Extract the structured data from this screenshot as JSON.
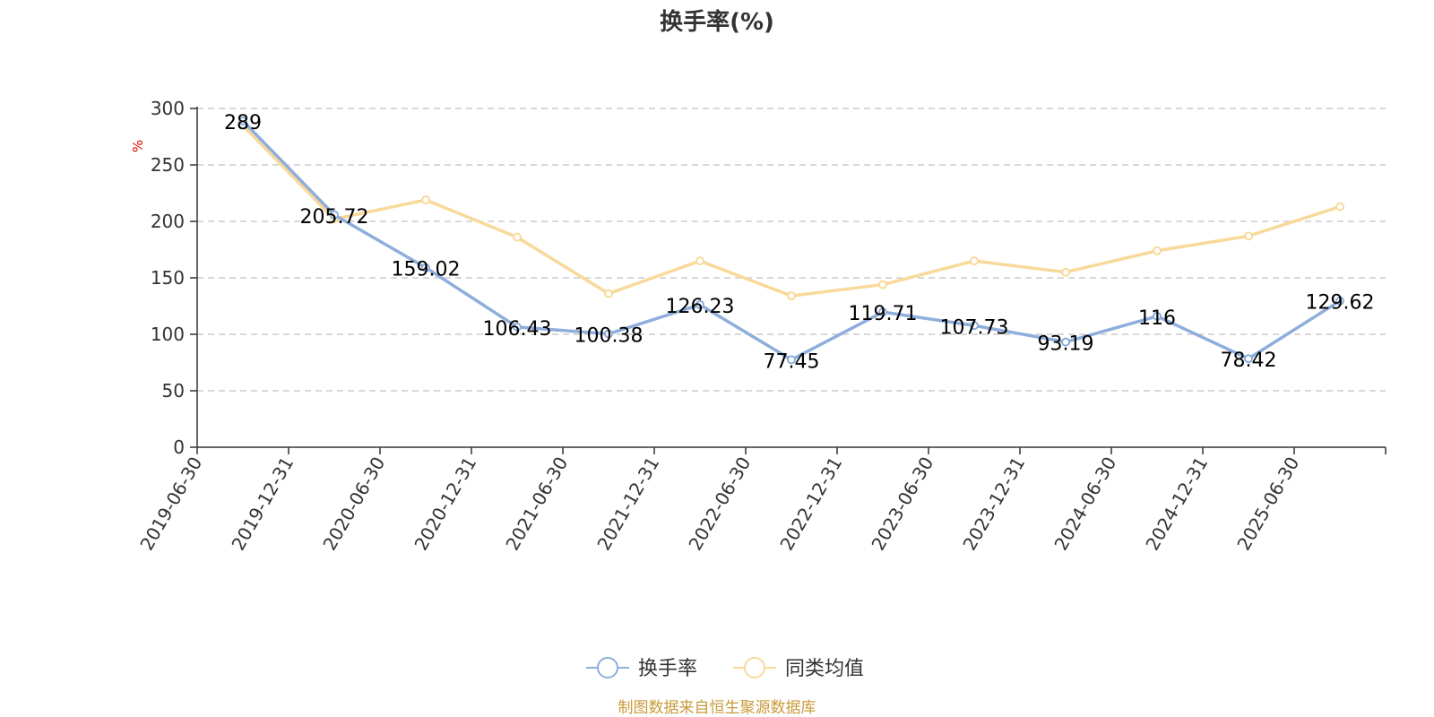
{
  "chart_data": {
    "type": "line",
    "title": "换手率(%)",
    "ylabel": "%",
    "xlabel": "",
    "categories": [
      "2019-06-30",
      "2019-12-31",
      "2020-06-30",
      "2020-12-31",
      "2021-06-30",
      "2021-12-31",
      "2022-06-30",
      "2022-12-31",
      "2023-06-30",
      "2023-12-31",
      "2024-06-30",
      "2024-12-31",
      "2025-06-30"
    ],
    "yticks": [
      0,
      50,
      100,
      150,
      200,
      250,
      300
    ],
    "ylim": [
      0,
      300
    ],
    "grid": true,
    "legend_position": "bottom-center",
    "series": [
      {
        "name": "换手率",
        "color": "#8eaedb",
        "values": [
          289,
          205.72,
          159.02,
          106.43,
          100.38,
          126.23,
          77.45,
          119.71,
          107.73,
          93.19,
          116,
          78.42,
          129.62
        ],
        "labels": [
          "289",
          "205.72",
          "159.02",
          "106.43",
          "100.38",
          "126.23",
          "77.45",
          "119.71",
          "107.73",
          "93.19",
          "116",
          "78.42",
          "129.62"
        ]
      },
      {
        "name": "同类均值",
        "color": "#f9d99a",
        "values": [
          285,
          202,
          219,
          186,
          136,
          165,
          134,
          144,
          165,
          155,
          174,
          187,
          213
        ]
      }
    ]
  },
  "source": "制图数据来自恒生聚源数据库"
}
